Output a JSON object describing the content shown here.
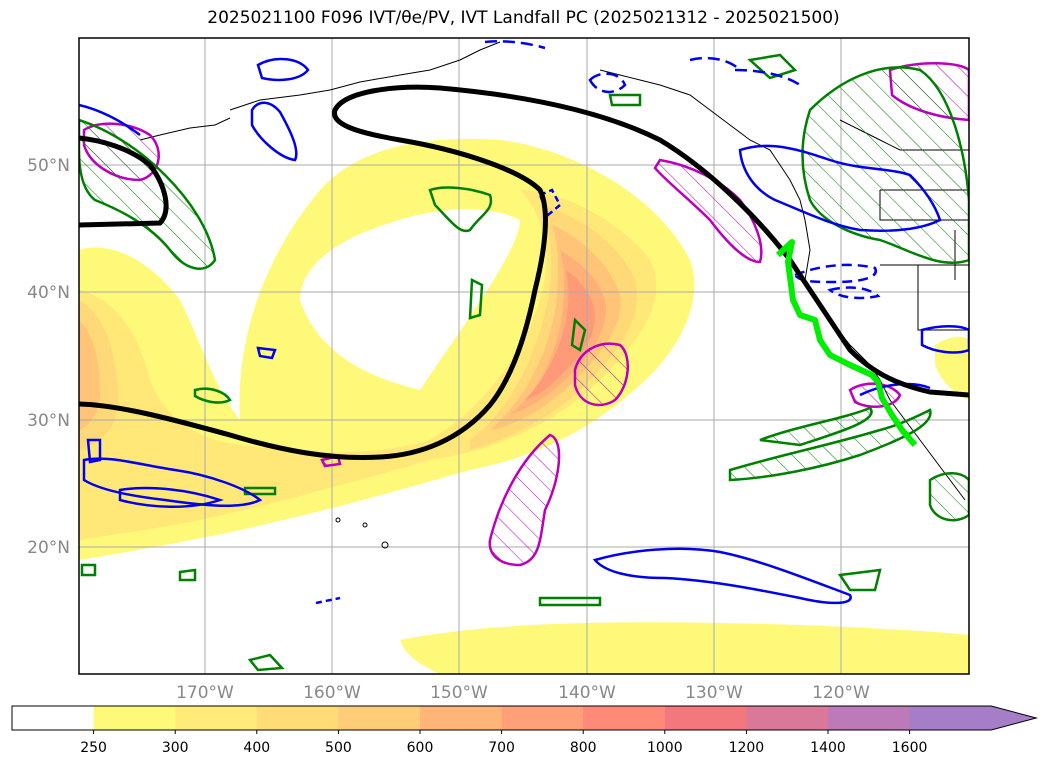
{
  "title": "2025021100 F096 IVT/θe/PV, IVT Landfall PC (2025021312 - 2025021500)",
  "map": {
    "lat_labels": [
      "50°N",
      "40°N",
      "30°N",
      "20°N"
    ],
    "lon_labels": [
      "170°W",
      "160°W",
      "150°W",
      "140°W",
      "130°W",
      "120°W"
    ],
    "grid": true,
    "label_color": "#888888"
  },
  "colorbar": {
    "levels": [
      "250",
      "300",
      "400",
      "500",
      "600",
      "700",
      "800",
      "1000",
      "1200",
      "1400",
      "1600"
    ],
    "colors": [
      "#ffffff",
      "#fff97a",
      "#ffec78",
      "#ffdc78",
      "#ffcc78",
      "#ffb478",
      "#ffa078",
      "#ff8a78",
      "#f2787e",
      "#d97898",
      "#bd7ab8",
      "#a67ec8"
    ],
    "extend": "max"
  },
  "legend_colors": {
    "pv_contour": "#0000ee",
    "theta_e_contour": "#008000",
    "high_ivt_hatch": "#bb00bb",
    "landfall_line": "#00ee00",
    "jet_contour": "#000000"
  }
}
